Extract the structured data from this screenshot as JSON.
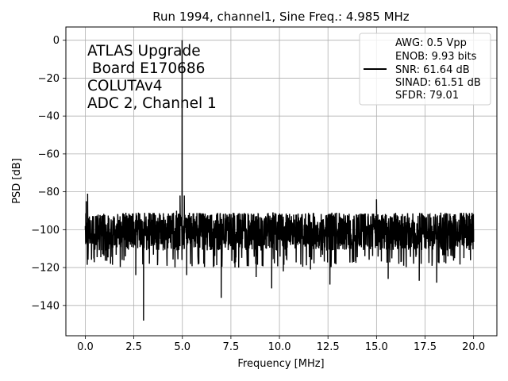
{
  "chart_data": {
    "type": "line",
    "title": "Run 1994, channel1, Sine Freq.: 4.985 MHz",
    "xlabel": "Frequency [MHz]",
    "ylabel": "PSD [dB]",
    "xlim": [
      -1,
      21.2
    ],
    "ylim": [
      -156,
      7
    ],
    "xticks": [
      0.0,
      2.5,
      5.0,
      7.5,
      10.0,
      12.5,
      15.0,
      17.5,
      20.0
    ],
    "xtick_labels": [
      "0.0",
      "2.5",
      "5.0",
      "7.5",
      "10.0",
      "12.5",
      "15.0",
      "17.5",
      "20.0"
    ],
    "yticks": [
      0,
      -20,
      -40,
      -60,
      -80,
      -100,
      -120,
      -140
    ],
    "ytick_labels": [
      "0",
      "−20",
      "−40",
      "−60",
      "−80",
      "−100",
      "−120",
      "−140"
    ],
    "grid": true,
    "annotation_lines": [
      "ATLAS Upgrade",
      " Board E170686",
      "COLUTAv4",
      "ADC 2, Channel 1"
    ],
    "legend": {
      "placement": "top-right",
      "lines": [
        "AWG: 0.5 Vpp",
        "ENOB: 9.93 bits",
        "SNR: 61.64 dB",
        "SINAD: 61.51 dB",
        "SFDR: 79.01"
      ]
    },
    "series": [
      {
        "color": "#000000",
        "noise_floor_db": -101,
        "noise_band_db": [
          -113,
          -93
        ],
        "points": [
          {
            "x": 0.0,
            "y": -100
          },
          {
            "x": 0.05,
            "y": -85
          },
          {
            "x": 0.12,
            "y": -81
          },
          {
            "x": 0.2,
            "y": -95
          },
          {
            "x": 0.25,
            "y": -107
          },
          {
            "x": 0.9,
            "y": -113
          },
          {
            "x": 1.3,
            "y": -118
          },
          {
            "x": 1.9,
            "y": -116
          },
          {
            "x": 2.6,
            "y": -124
          },
          {
            "x": 3.0,
            "y": -148
          },
          {
            "x": 3.3,
            "y": -118
          },
          {
            "x": 4.2,
            "y": -114
          },
          {
            "x": 4.7,
            "y": -90
          },
          {
            "x": 4.88,
            "y": -82
          },
          {
            "x": 4.985,
            "y": 0
          },
          {
            "x": 5.1,
            "y": -82
          },
          {
            "x": 5.22,
            "y": -124
          },
          {
            "x": 5.5,
            "y": -100
          },
          {
            "x": 6.1,
            "y": -118
          },
          {
            "x": 7.0,
            "y": -136
          },
          {
            "x": 7.9,
            "y": -120
          },
          {
            "x": 8.8,
            "y": -125
          },
          {
            "x": 9.6,
            "y": -131
          },
          {
            "x": 10.2,
            "y": -122
          },
          {
            "x": 11.6,
            "y": -121
          },
          {
            "x": 12.6,
            "y": -129
          },
          {
            "x": 14.4,
            "y": -114
          },
          {
            "x": 15.0,
            "y": -84
          },
          {
            "x": 15.1,
            "y": -100
          },
          {
            "x": 15.6,
            "y": -126
          },
          {
            "x": 16.4,
            "y": -119
          },
          {
            "x": 17.2,
            "y": -127
          },
          {
            "x": 18.1,
            "y": -128
          },
          {
            "x": 18.9,
            "y": -114
          },
          {
            "x": 19.5,
            "y": -115
          },
          {
            "x": 20.0,
            "y": -100
          }
        ]
      }
    ]
  }
}
